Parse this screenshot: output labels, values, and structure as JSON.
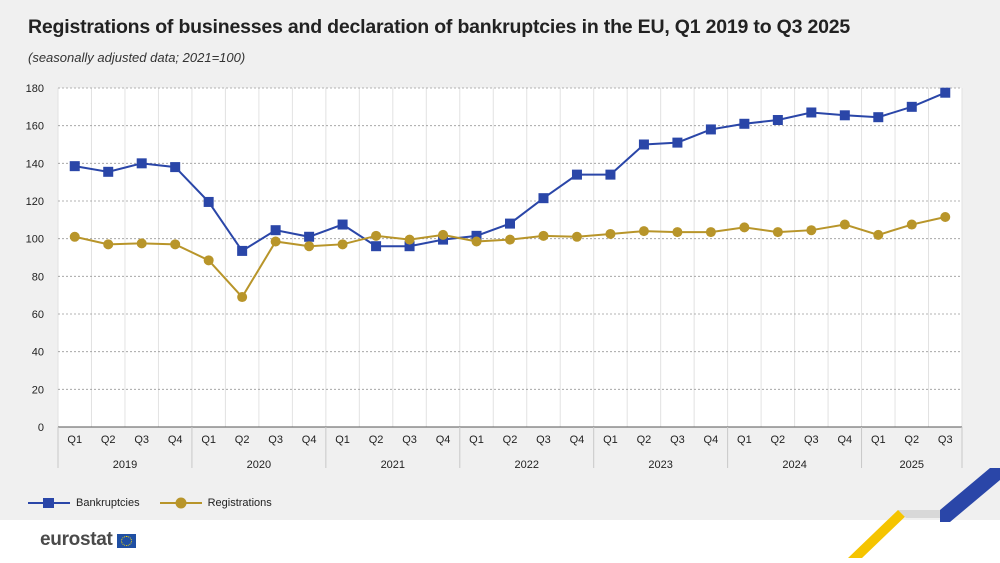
{
  "title": "Registrations of businesses and declaration of bankruptcies in the EU, Q1 2019 to Q3 2025",
  "subtitle": "(seasonally adjusted data; 2021=100)",
  "logo_text": "eurostat",
  "chart_data": {
    "type": "line",
    "ylim": [
      0,
      180
    ],
    "y_ticks": [
      0,
      20,
      40,
      60,
      80,
      100,
      120,
      140,
      160,
      180
    ],
    "x": [
      "Q1",
      "Q2",
      "Q3",
      "Q4",
      "Q1",
      "Q2",
      "Q3",
      "Q4",
      "Q1",
      "Q2",
      "Q3",
      "Q4",
      "Q1",
      "Q2",
      "Q3",
      "Q4",
      "Q1",
      "Q2",
      "Q3",
      "Q4",
      "Q1",
      "Q2",
      "Q3",
      "Q4",
      "Q1",
      "Q2",
      "Q3"
    ],
    "years": [
      "2019",
      "2020",
      "2021",
      "2022",
      "2023",
      "2024",
      "2025"
    ],
    "grid": true,
    "legend_position": "bottom-left",
    "series": [
      {
        "name": "Bankruptcies",
        "color": "#2a46a8",
        "marker": "square",
        "values": [
          138.5,
          135.5,
          140,
          138,
          119.5,
          93.5,
          104.5,
          101,
          107.5,
          96,
          96,
          99.5,
          101.5,
          108,
          121.5,
          134,
          134,
          150,
          151,
          158,
          161,
          163,
          167,
          165.5,
          164.5,
          170,
          177.5
        ]
      },
      {
        "name": "Registrations",
        "color": "#b8952a",
        "marker": "circle",
        "values": [
          101,
          97,
          97.5,
          97,
          88.5,
          69,
          98.5,
          96,
          97,
          101.5,
          99.5,
          102,
          98.5,
          99.5,
          101.5,
          101,
          102.5,
          104,
          103.5,
          103.5,
          106,
          103.5,
          104.5,
          107.5,
          102,
          107.5,
          111.5
        ]
      }
    ]
  },
  "grid_color": "#9a9a9a",
  "axis_text_color": "#222222"
}
